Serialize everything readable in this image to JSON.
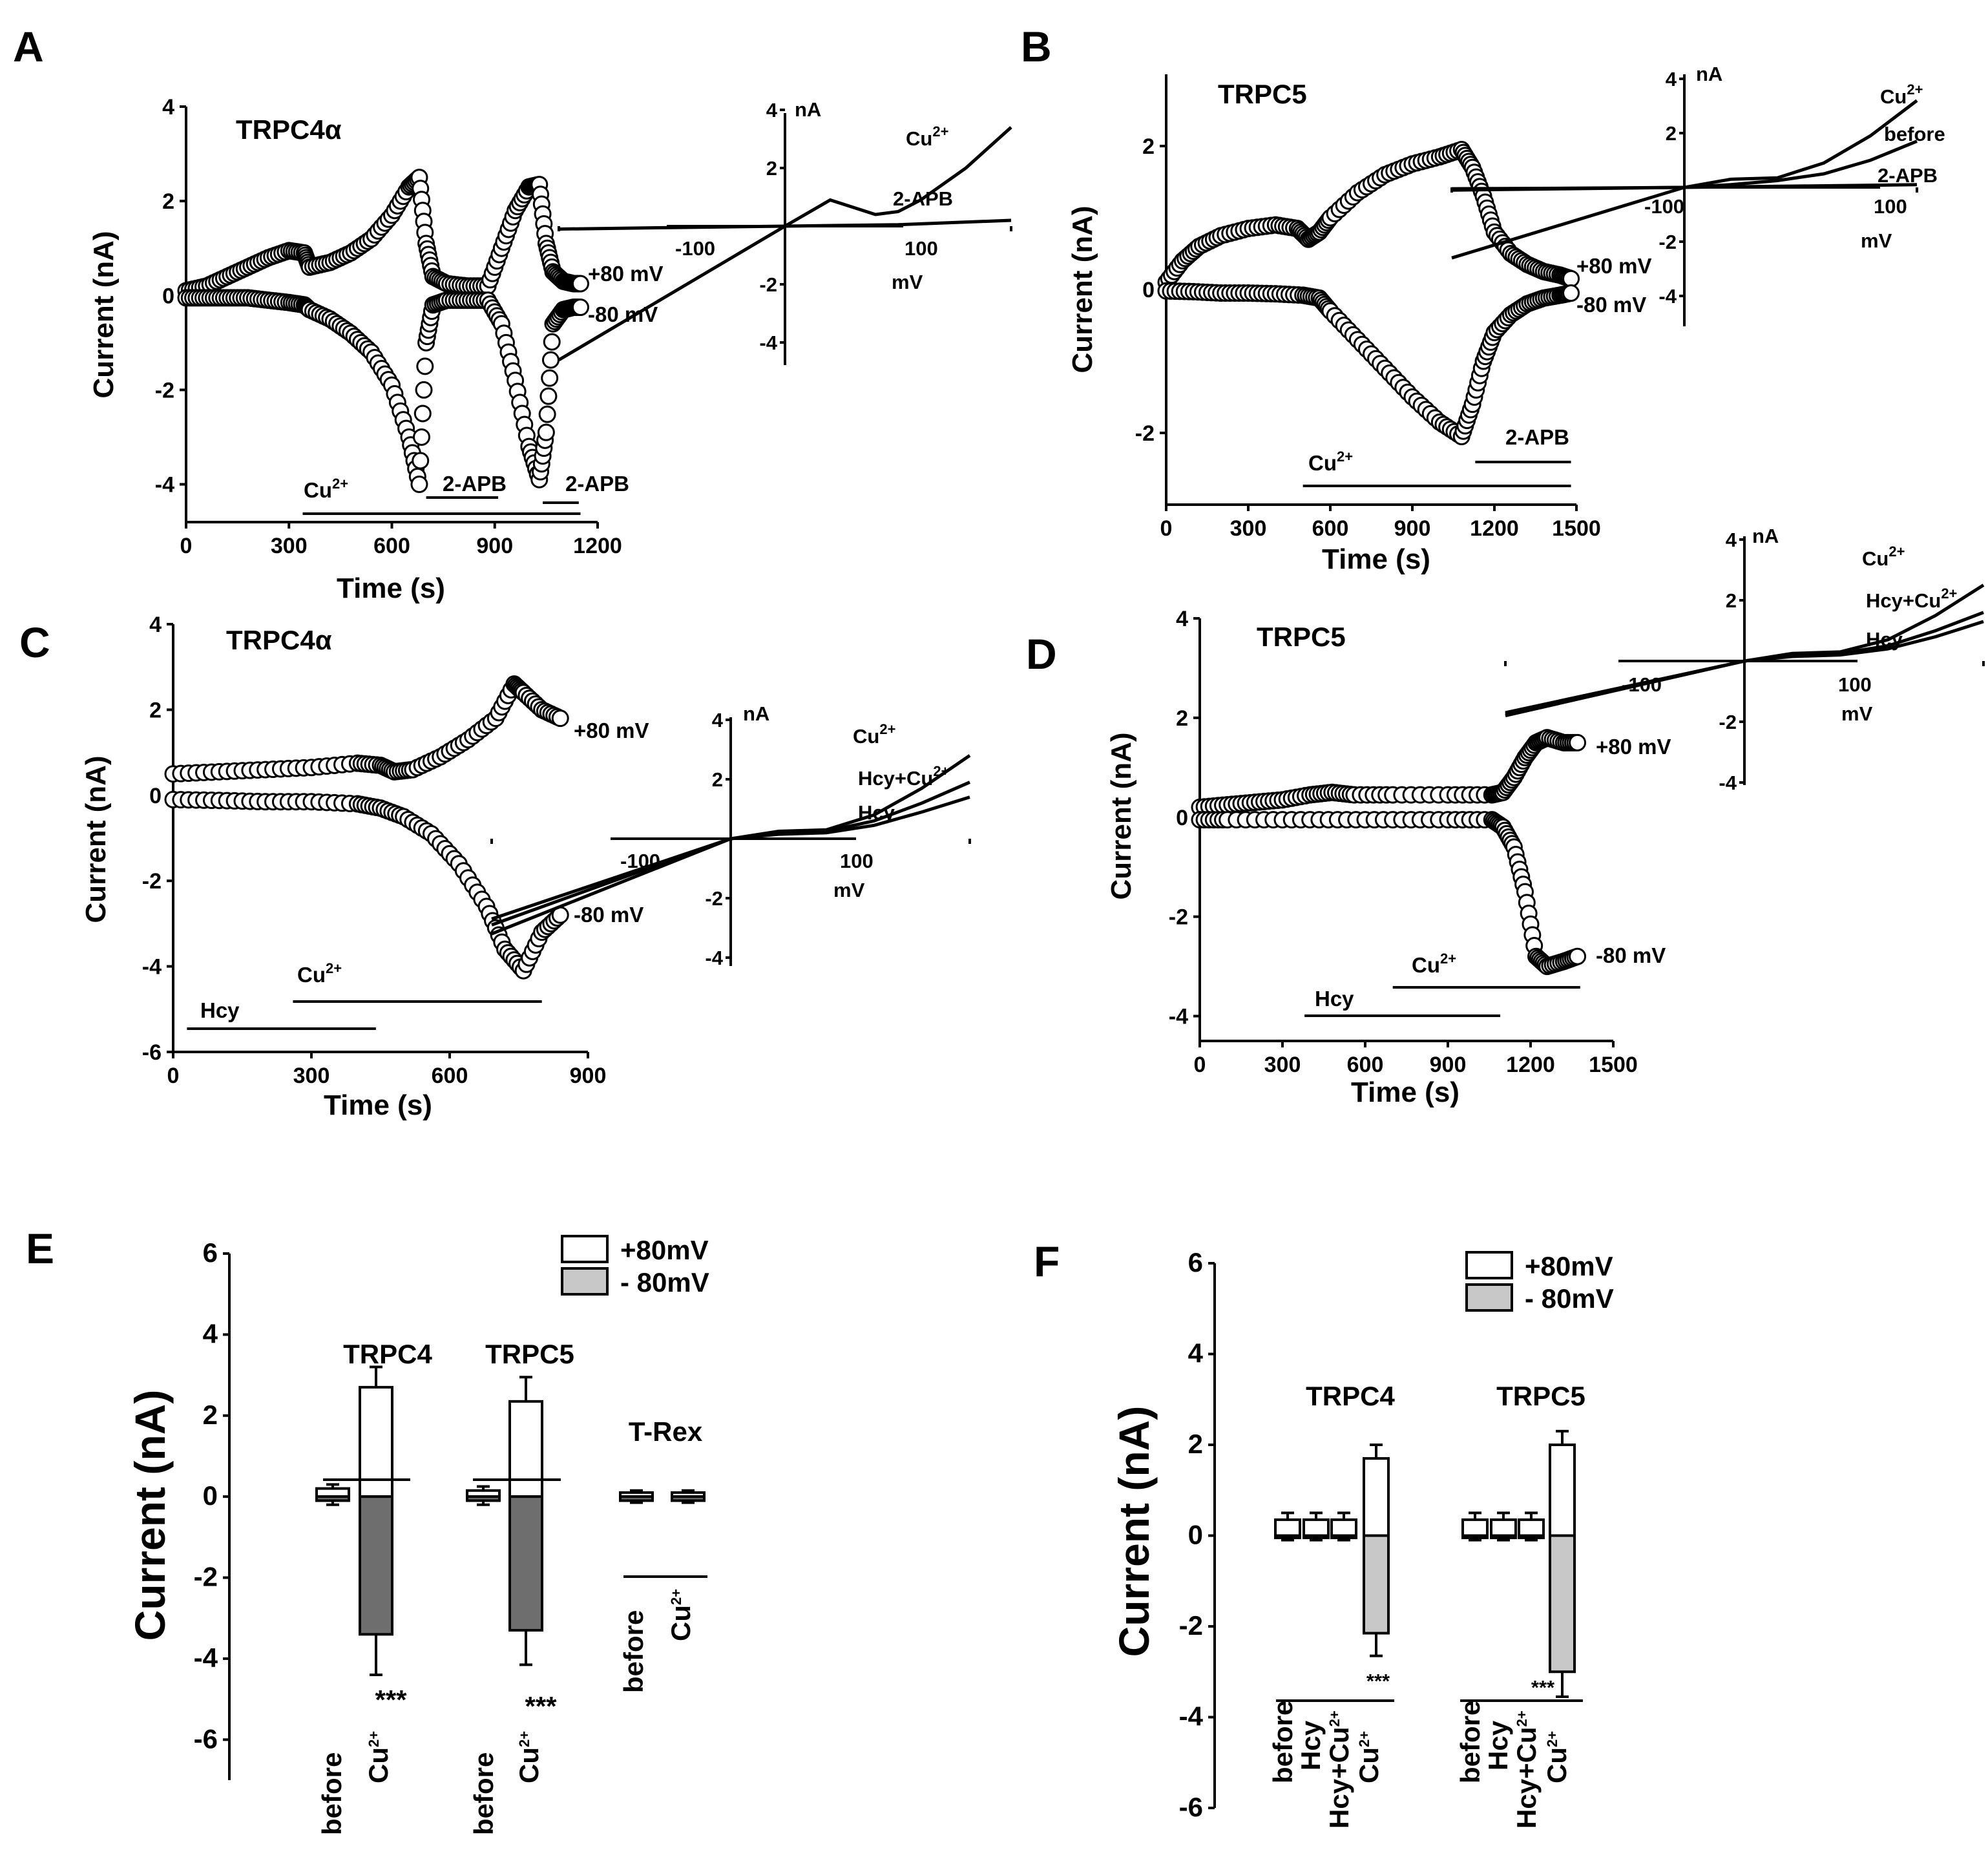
{
  "chart_data": [
    {
      "panel": "A",
      "type": "scatter",
      "title": "TRPC4α",
      "xlabel": "Time (s)",
      "ylabel": "Current (nA)",
      "xlim": [
        0,
        1200
      ],
      "ylim": [
        -4.8,
        4
      ],
      "xticks": [
        0,
        300,
        600,
        900,
        1200
      ],
      "yticks": [
        -4,
        -2,
        0,
        2,
        4
      ],
      "series": [
        {
          "name": "+80 mV",
          "x": [
            0,
            60,
            120,
            180,
            240,
            300,
            345,
            360,
            420,
            480,
            540,
            600,
            650,
            680,
            700,
            720,
            760,
            820,
            880,
            920,
            960,
            1000,
            1030,
            1050,
            1070,
            1100,
            1130,
            1150
          ],
          "y": [
            0.1,
            0.2,
            0.4,
            0.6,
            0.8,
            0.95,
            0.9,
            0.6,
            0.7,
            0.9,
            1.2,
            1.7,
            2.3,
            2.5,
            1.1,
            0.4,
            0.25,
            0.2,
            0.2,
            1.0,
            1.8,
            2.3,
            2.35,
            1.1,
            0.5,
            0.3,
            0.25,
            0.25
          ]
        },
        {
          "name": "-80 mV",
          "x": [
            0,
            60,
            120,
            180,
            240,
            300,
            345,
            360,
            420,
            480,
            540,
            600,
            650,
            680,
            700,
            720,
            760,
            820,
            880,
            920,
            960,
            1000,
            1030,
            1050,
            1070,
            1100,
            1130,
            1150
          ],
          "y": [
            -0.05,
            -0.05,
            -0.05,
            -0.05,
            -0.1,
            -0.15,
            -0.2,
            -0.3,
            -0.5,
            -0.8,
            -1.2,
            -1.9,
            -3.0,
            -4.0,
            -1.0,
            -0.2,
            -0.1,
            -0.1,
            -0.1,
            -0.6,
            -1.8,
            -3.2,
            -3.9,
            -2.9,
            -0.6,
            -0.3,
            -0.25,
            -0.25
          ]
        }
      ],
      "bars": [
        {
          "label": "Cu2+",
          "start": 340,
          "end": 1150
        },
        {
          "label": "2-APB",
          "start": 700,
          "end": 910
        },
        {
          "label": "2-APB",
          "start": 1040,
          "end": 1145
        }
      ],
      "labels_right": [
        "+80 mV",
        "-80 mV"
      ],
      "iv_inset": {
        "xlabel": "mV",
        "ylabel": "nA",
        "xlim": [
          -100,
          100
        ],
        "ylim": [
          -5,
          4
        ],
        "xticks": [
          -100,
          100
        ],
        "yticks": [
          -4,
          -2,
          2,
          4
        ],
        "series": [
          {
            "name": "Cu2+",
            "x": [
              -100,
              -50,
              0,
              20,
              40,
              50,
              60,
              80,
              100
            ],
            "y": [
              -4.6,
              -2.3,
              0,
              0.9,
              0.4,
              0.5,
              0.9,
              2.0,
              3.4
            ]
          },
          {
            "name": "2-APB",
            "x": [
              -100,
              -50,
              0,
              50,
              100
            ],
            "y": [
              -0.1,
              -0.05,
              0,
              0.05,
              0.2
            ]
          }
        ]
      }
    },
    {
      "panel": "B",
      "type": "scatter",
      "title": "TRPC5",
      "xlabel": "Time (s)",
      "ylabel": "Current (nA)",
      "xlim": [
        0,
        1500
      ],
      "ylim": [
        -3,
        3
      ],
      "xticks": [
        0,
        300,
        600,
        900,
        1200,
        1500
      ],
      "yticks": [
        -2,
        0,
        2
      ],
      "series": [
        {
          "name": "+80 mV",
          "x": [
            0,
            60,
            120,
            200,
            300,
            400,
            480,
            520,
            560,
            600,
            700,
            800,
            900,
            1000,
            1080,
            1120,
            1160,
            1200,
            1260,
            1320,
            1380,
            1440,
            1480
          ],
          "y": [
            0.1,
            0.4,
            0.6,
            0.75,
            0.85,
            0.9,
            0.85,
            0.7,
            0.8,
            1.0,
            1.35,
            1.6,
            1.75,
            1.85,
            1.95,
            1.7,
            1.3,
            0.8,
            0.5,
            0.35,
            0.25,
            0.2,
            0.15
          ]
        },
        {
          "name": "-80 mV",
          "x": [
            0,
            100,
            200,
            300,
            400,
            500,
            560,
            600,
            700,
            800,
            900,
            1000,
            1080,
            1120,
            1160,
            1200,
            1260,
            1320,
            1380,
            1440,
            1480
          ],
          "y": [
            -0.02,
            -0.03,
            -0.05,
            -0.05,
            -0.06,
            -0.08,
            -0.12,
            -0.3,
            -0.7,
            -1.1,
            -1.5,
            -1.85,
            -2.05,
            -1.6,
            -1.0,
            -0.6,
            -0.35,
            -0.2,
            -0.12,
            -0.08,
            -0.05
          ]
        }
      ],
      "bars": [
        {
          "label": "Cu2+",
          "start": 500,
          "end": 1480
        },
        {
          "label": "2-APB",
          "start": 1130,
          "end": 1480
        }
      ],
      "labels_right": [
        "+80 mV",
        "-80 mV"
      ],
      "iv_inset": {
        "xlabel": "mV",
        "ylabel": "nA",
        "xlim": [
          -100,
          100
        ],
        "ylim": [
          -5,
          4
        ],
        "xticks": [
          -100,
          100
        ],
        "yticks": [
          -4,
          -2,
          2,
          4
        ],
        "series": [
          {
            "name": "Cu2+",
            "x": [
              -100,
              -50,
              0,
              20,
              40,
              60,
              80,
              100
            ],
            "y": [
              -2.6,
              -1.3,
              0,
              0.3,
              0.35,
              0.9,
              1.9,
              3.2
            ]
          },
          {
            "name": "before",
            "x": [
              -100,
              -50,
              0,
              20,
              40,
              60,
              80,
              100
            ],
            "y": [
              -0.05,
              -0.03,
              0,
              0.1,
              0.25,
              0.5,
              1.0,
              1.7
            ]
          },
          {
            "name": "2-APB",
            "x": [
              -100,
              -50,
              0,
              50,
              100
            ],
            "y": [
              -0.1,
              -0.05,
              0,
              0.05,
              0.1
            ]
          }
        ]
      }
    },
    {
      "panel": "C",
      "type": "scatter",
      "title": "TRPC4α",
      "xlabel": "Time (s)",
      "ylabel": "Current (nA)",
      "xlim": [
        0,
        900
      ],
      "ylim": [
        -6,
        4
      ],
      "xticks": [
        0,
        300,
        600,
        900
      ],
      "yticks": [
        -6,
        -4,
        -2,
        0,
        2,
        4
      ],
      "series": [
        {
          "name": "+80 mV",
          "x": [
            0,
            100,
            200,
            300,
            400,
            450,
            480,
            520,
            580,
            640,
            700,
            740,
            760,
            800,
            840
          ],
          "y": [
            0.5,
            0.55,
            0.6,
            0.65,
            0.75,
            0.7,
            0.55,
            0.6,
            0.9,
            1.3,
            1.8,
            2.6,
            2.4,
            2.0,
            1.8
          ]
        },
        {
          "name": "-80 mV",
          "x": [
            0,
            100,
            200,
            300,
            400,
            450,
            500,
            560,
            620,
            680,
            720,
            760,
            800,
            840
          ],
          "y": [
            -0.1,
            -0.12,
            -0.15,
            -0.15,
            -0.2,
            -0.3,
            -0.5,
            -0.9,
            -1.6,
            -2.6,
            -3.6,
            -4.1,
            -3.2,
            -2.8
          ]
        }
      ],
      "bars": [
        {
          "label": "Hcy",
          "start": 30,
          "end": 440
        },
        {
          "label": "Cu2+",
          "start": 260,
          "end": 800
        }
      ],
      "labels_right": [
        "+80 mV",
        "-80 mV"
      ],
      "iv_inset": {
        "xlabel": "mV",
        "ylabel": "nA",
        "xlim": [
          -100,
          100
        ],
        "ylim": [
          -4,
          4
        ],
        "xticks": [
          -100,
          100
        ],
        "yticks": [
          -4,
          -2,
          2,
          4
        ],
        "series": [
          {
            "name": "Cu2+",
            "x": [
              -100,
              -50,
              0,
              20,
              40,
              60,
              80,
              100
            ],
            "y": [
              -3.2,
              -1.6,
              0,
              0.25,
              0.3,
              0.8,
              1.7,
              2.8
            ]
          },
          {
            "name": "Hcy+Cu2+",
            "x": [
              -100,
              -50,
              0,
              20,
              40,
              60,
              80,
              100
            ],
            "y": [
              -2.9,
              -1.45,
              0,
              0.2,
              0.25,
              0.6,
              1.2,
              1.9
            ]
          },
          {
            "name": "Hcy",
            "x": [
              -100,
              -50,
              0,
              20,
              40,
              60,
              80,
              100
            ],
            "y": [
              -2.7,
              -1.35,
              0,
              0.15,
              0.2,
              0.45,
              0.9,
              1.4
            ]
          }
        ]
      }
    },
    {
      "panel": "D",
      "type": "scatter",
      "title": "TRPC5",
      "xlabel": "Time (s)",
      "ylabel": "Current (nA)",
      "xlim": [
        0,
        1500
      ],
      "ylim": [
        -4.5,
        4
      ],
      "xticks": [
        0,
        300,
        600,
        900,
        1200,
        1500
      ],
      "yticks": [
        -4,
        -2,
        0,
        2,
        4
      ],
      "series": [
        {
          "name": "+80 mV",
          "x": [
            0,
            100,
            200,
            300,
            400,
            480,
            560,
            700,
            900,
            1060,
            1100,
            1140,
            1180,
            1220,
            1260,
            1320,
            1370
          ],
          "y": [
            0.2,
            0.25,
            0.3,
            0.35,
            0.45,
            0.5,
            0.45,
            0.45,
            0.45,
            0.45,
            0.5,
            0.8,
            1.2,
            1.5,
            1.6,
            1.5,
            1.5
          ]
        },
        {
          "name": "-80 mV",
          "x": [
            0,
            100,
            300,
            500,
            700,
            900,
            1060,
            1100,
            1140,
            1180,
            1220,
            1260,
            1320,
            1370
          ],
          "y": [
            -0.05,
            -0.05,
            -0.05,
            -0.05,
            -0.05,
            -0.05,
            -0.05,
            -0.2,
            -0.6,
            -1.5,
            -2.8,
            -3.0,
            -2.9,
            -2.8
          ]
        }
      ],
      "bars": [
        {
          "label": "Hcy",
          "start": 380,
          "end": 1090
        },
        {
          "label": "Cu2+",
          "start": 700,
          "end": 1380
        }
      ],
      "labels_right": [
        "+80 mV",
        "-80 mV"
      ],
      "iv_inset": {
        "xlabel": "mV",
        "ylabel": "nA",
        "xlim": [
          -100,
          100
        ],
        "ylim": [
          -4,
          4
        ],
        "xticks": [
          -100,
          100
        ],
        "yticks": [
          -4,
          -2,
          2,
          4
        ],
        "series": [
          {
            "name": "Cu2+",
            "x": [
              -100,
              -50,
              0,
              20,
              40,
              60,
              80,
              100
            ],
            "y": [
              -1.8,
              -0.9,
              0,
              0.25,
              0.3,
              0.7,
              1.5,
              2.5
            ]
          },
          {
            "name": "Hcy+Cu2+",
            "x": [
              -100,
              -50,
              0,
              20,
              40,
              60,
              80,
              100
            ],
            "y": [
              -1.75,
              -0.87,
              0,
              0.2,
              0.25,
              0.5,
              1.0,
              1.6
            ]
          },
          {
            "name": "Hcy",
            "x": [
              -100,
              -50,
              0,
              20,
              40,
              60,
              80,
              100
            ],
            "y": [
              -1.7,
              -0.85,
              0,
              0.15,
              0.2,
              0.4,
              0.8,
              1.3
            ]
          }
        ]
      }
    },
    {
      "panel": "E",
      "type": "bar",
      "ylabel": "Current (nA)",
      "ylim": [
        -7,
        6
      ],
      "yticks": [
        -6,
        -4,
        -2,
        0,
        2,
        4,
        6
      ],
      "legend": [
        "+80mV",
        "- 80mV"
      ],
      "groups": [
        {
          "label": "TRPC4",
          "categories": [
            "before",
            "Cu2+"
          ],
          "pos": [
            0.2,
            2.7
          ],
          "pos_err": [
            0.1,
            0.5
          ],
          "neg": [
            -0.1,
            -3.4
          ],
          "neg_err": [
            0.1,
            1.0
          ],
          "sig": "***"
        },
        {
          "label": "TRPC5",
          "categories": [
            "before",
            "Cu2+"
          ],
          "pos": [
            0.15,
            2.35
          ],
          "pos_err": [
            0.1,
            0.6
          ],
          "neg": [
            -0.1,
            -3.3
          ],
          "neg_err": [
            0.1,
            0.85
          ],
          "sig": "***"
        },
        {
          "label": "T-Rex",
          "categories": [
            "before",
            "Cu2+"
          ],
          "pos": [
            0.1,
            0.1
          ],
          "pos_err": [
            0.05,
            0.05
          ],
          "neg": [
            -0.1,
            -0.1
          ],
          "neg_err": [
            0.05,
            0.05
          ],
          "sig": ""
        }
      ]
    },
    {
      "panel": "F",
      "type": "bar",
      "ylabel": "Current (nA)",
      "ylim": [
        -6,
        6
      ],
      "yticks": [
        -6,
        -4,
        -2,
        0,
        2,
        4,
        6
      ],
      "legend": [
        "+80mV",
        "- 80mV"
      ],
      "groups": [
        {
          "label": "TRPC4",
          "categories": [
            "before",
            "Hcy",
            "Hcy+Cu2+",
            "Cu2+"
          ],
          "pos": [
            0.35,
            0.35,
            0.35,
            1.7
          ],
          "pos_err": [
            0.15,
            0.15,
            0.15,
            0.3
          ],
          "neg": [
            -0.05,
            -0.05,
            -0.05,
            -2.15
          ],
          "neg_err": [
            0.05,
            0.05,
            0.05,
            0.5
          ],
          "sig": "***"
        },
        {
          "label": "TRPC5",
          "categories": [
            "before",
            "Hcy",
            "Hcy+Cu2+",
            "Cu2+"
          ],
          "pos": [
            0.35,
            0.35,
            0.35,
            2.0
          ],
          "pos_err": [
            0.15,
            0.15,
            0.15,
            0.3
          ],
          "neg": [
            -0.05,
            -0.05,
            -0.05,
            -3.0
          ],
          "neg_err": [
            0.05,
            0.05,
            0.05,
            0.55
          ],
          "sig": "***"
        }
      ]
    }
  ]
}
